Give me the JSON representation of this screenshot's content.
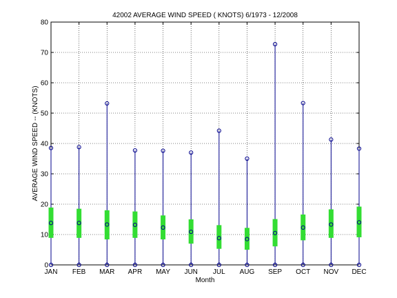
{
  "chart_data": {
    "type": "box-range",
    "title": "42002  AVERAGE WIND SPEED ( KNOTS) 6/1973 - 12/2008",
    "xlabel": "Month",
    "ylabel": "AVERAGE WIND SPEED -- (KNOTS)",
    "ylim": [
      0,
      80
    ],
    "yticks": [
      0,
      10,
      20,
      30,
      40,
      50,
      60,
      70,
      80
    ],
    "grid": true,
    "categories": [
      "JAN",
      "FEB",
      "MAR",
      "APR",
      "MAY",
      "JUN",
      "JUL",
      "AUG",
      "SEP",
      "OCT",
      "NOV",
      "DEC"
    ],
    "min": [
      0,
      0,
      0,
      0,
      0,
      0,
      0,
      0,
      0,
      0,
      0,
      0
    ],
    "max": [
      38.5,
      38.8,
      53.2,
      37.7,
      37.6,
      37.0,
      44.2,
      35.0,
      72.7,
      53.3,
      41.3,
      38.3
    ],
    "mean": [
      13.8,
      13.8,
      13.3,
      13.2,
      12.3,
      10.9,
      8.8,
      8.5,
      10.5,
      12.3,
      13.3,
      14.0
    ],
    "box_low": [
      8.9,
      8.9,
      8.4,
      8.9,
      8.4,
      7.0,
      5.3,
      5.0,
      6.1,
      8.1,
      8.9,
      9.1
    ],
    "box_high": [
      18.9,
      18.5,
      18.0,
      17.6,
      16.3,
      15.0,
      13.1,
      12.2,
      15.1,
      16.6,
      18.3,
      19.2
    ],
    "colors": {
      "whisker": "#00008b",
      "marker": "#00008b",
      "box": "#33dd33",
      "grid": "#000000",
      "axis": "#000000"
    }
  }
}
